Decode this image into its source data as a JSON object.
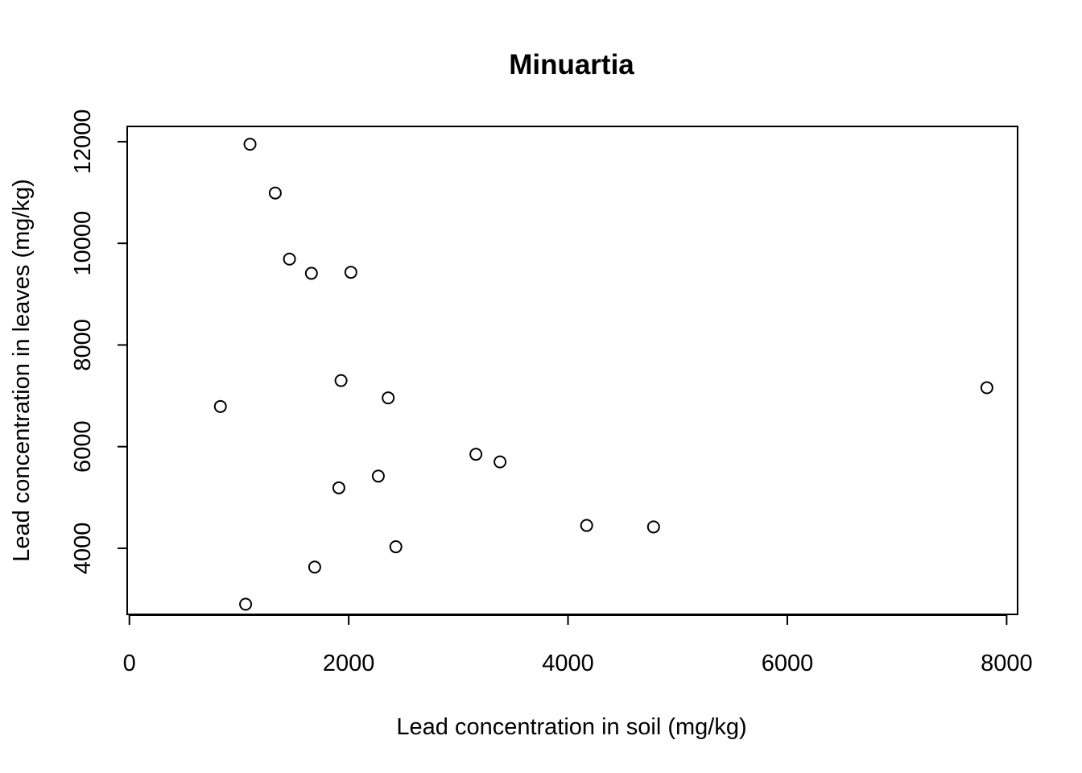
{
  "chart_data": {
    "type": "scatter",
    "title": "Minuartia",
    "xlabel": "Lead concentration in soil (mg/kg)",
    "ylabel": "Lead concentration in leaves (mg/kg)",
    "xlim": [
      -20,
      8100
    ],
    "ylim": [
      2700,
      12300
    ],
    "xticks": [
      0,
      2000,
      4000,
      6000,
      8000
    ],
    "yticks": [
      4000,
      6000,
      8000,
      10000,
      12000
    ],
    "xtick_labels": [
      "0",
      "2000",
      "4000",
      "6000",
      "8000"
    ],
    "ytick_labels": [
      "4000",
      "6000",
      "8000",
      "10000",
      "12000"
    ],
    "marker": "open-circle",
    "grid": false,
    "points": [
      {
        "x": 1100,
        "y": 11950
      },
      {
        "x": 1330,
        "y": 10990
      },
      {
        "x": 1460,
        "y": 9690
      },
      {
        "x": 1660,
        "y": 9410
      },
      {
        "x": 2020,
        "y": 9430
      },
      {
        "x": 1930,
        "y": 7300
      },
      {
        "x": 2360,
        "y": 6960
      },
      {
        "x": 830,
        "y": 6790
      },
      {
        "x": 3160,
        "y": 5850
      },
      {
        "x": 3380,
        "y": 5700
      },
      {
        "x": 2270,
        "y": 5420
      },
      {
        "x": 1910,
        "y": 5190
      },
      {
        "x": 7820,
        "y": 7160
      },
      {
        "x": 4170,
        "y": 4450
      },
      {
        "x": 4780,
        "y": 4420
      },
      {
        "x": 2430,
        "y": 4030
      },
      {
        "x": 1690,
        "y": 3630
      },
      {
        "x": 1060,
        "y": 2900
      }
    ]
  }
}
